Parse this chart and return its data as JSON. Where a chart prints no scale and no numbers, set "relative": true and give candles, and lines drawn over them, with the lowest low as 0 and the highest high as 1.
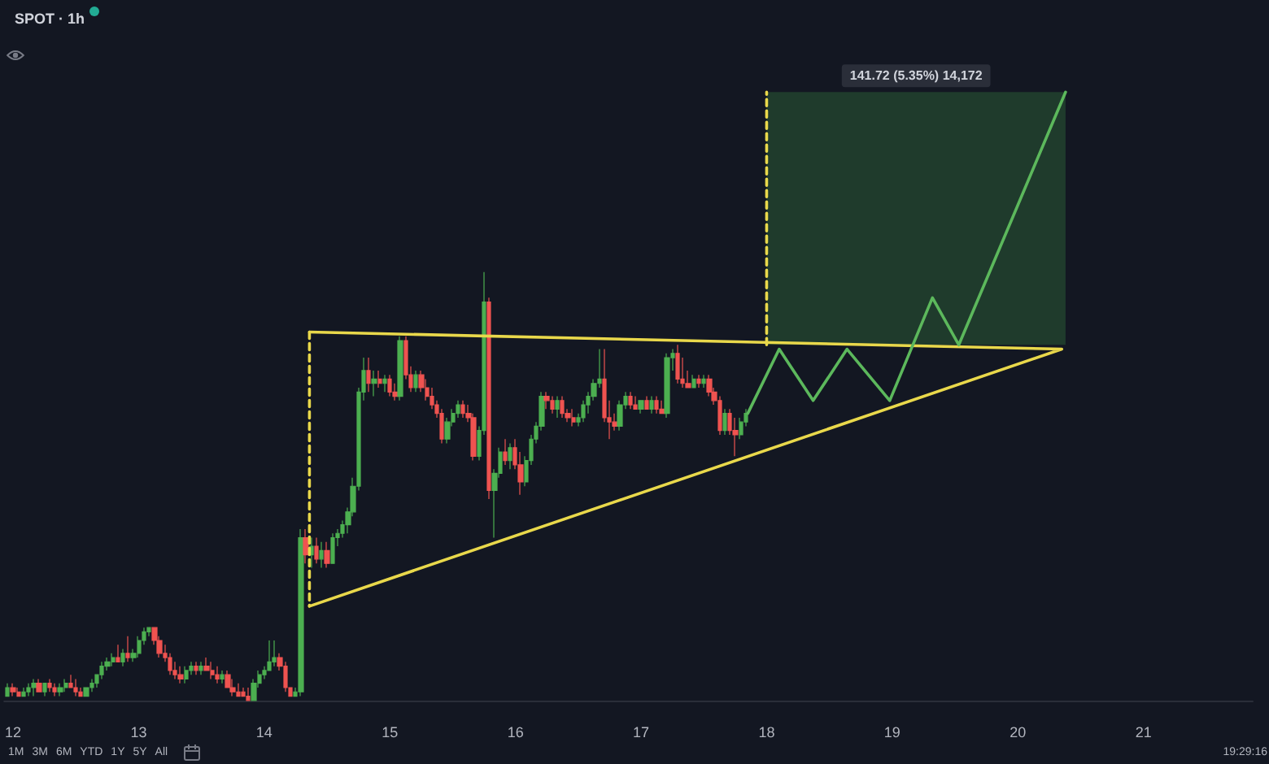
{
  "chart_data": {
    "type": "candlestick",
    "title": "SPOT · 1h",
    "relative": true,
    "marker": "none",
    "xlim": [
      11.93,
      21.87
    ],
    "xticks": [
      12,
      13,
      14,
      15,
      16,
      17,
      18,
      19,
      20,
      21
    ],
    "annotations": [
      "141.72 (5.35%) 14,172",
      "1M",
      "3M",
      "6M",
      "YTD",
      "1Y",
      "5Y",
      "All",
      "19:29:16"
    ],
    "series": [
      {
        "x": [
          11.958,
          12,
          12.042,
          12.083,
          12.125,
          12.167,
          12.208,
          12.25,
          12.292,
          12.333,
          12.375,
          12.417,
          12.458,
          12.5,
          12.542,
          12.583,
          12.625,
          12.667,
          12.708,
          12.75,
          12.792,
          12.833,
          12.875,
          12.917,
          12.958,
          13,
          13.042,
          13.083,
          13.125,
          13.167,
          13.208,
          13.25,
          13.292,
          13.333,
          13.375,
          13.417,
          13.458,
          13.5,
          13.542,
          13.583,
          13.625,
          13.667,
          13.708,
          13.75,
          13.792,
          13.833,
          13.875,
          13.917,
          13.958,
          14,
          14.042,
          14.083,
          14.125,
          14.167,
          14.208,
          14.25,
          14.292,
          14.333,
          14.375,
          14.417,
          14.458,
          14.5,
          14.542,
          14.583,
          14.625,
          14.667,
          14.708,
          14.75,
          14.792,
          14.833,
          14.875,
          14.917,
          14.958,
          15,
          15.042,
          15.083,
          15.125,
          15.167,
          15.208,
          15.25,
          15.292,
          15.333,
          15.375,
          15.417,
          15.458,
          15.5,
          15.542,
          15.583,
          15.625,
          15.667,
          15.708,
          15.75,
          15.792,
          15.833,
          15.875,
          15.917,
          15.958,
          16,
          16.042,
          16.083,
          16.125,
          16.167,
          16.208,
          16.25,
          16.292,
          16.333,
          16.375,
          16.417,
          16.458,
          16.5,
          16.542,
          16.583,
          16.625,
          16.667,
          16.708,
          16.75,
          16.792,
          16.833,
          16.875,
          16.917,
          16.958,
          17,
          17.042,
          17.083,
          17.125,
          17.167,
          17.208,
          17.25,
          17.292,
          17.333,
          17.375,
          17.417,
          17.458,
          17.5,
          17.542,
          17.583,
          17.625,
          17.667,
          17.708,
          17.75,
          17.792,
          17.833
        ],
        "ohlc": [
          [
            0.01,
            0.04,
            0.01,
            0.03
          ],
          [
            0.03,
            0.04,
            0.01,
            0.02
          ],
          [
            0.02,
            0.03,
            0.01,
            0.01
          ],
          [
            0.01,
            0.03,
            0.01,
            0.02
          ],
          [
            0.02,
            0.04,
            0.01,
            0.03
          ],
          [
            0.03,
            0.05,
            0.01,
            0.04
          ],
          [
            0.04,
            0.05,
            0.02,
            0.02
          ],
          [
            0.02,
            0.04,
            0.01,
            0.04
          ],
          [
            0.04,
            0.05,
            0.02,
            0.03
          ],
          [
            0.03,
            0.04,
            0.01,
            0.02
          ],
          [
            0.02,
            0.04,
            0.01,
            0.03
          ],
          [
            0.03,
            0.05,
            0.02,
            0.04
          ],
          [
            0.04,
            0.06,
            0.03,
            0.03
          ],
          [
            0.03,
            0.05,
            0.01,
            0.02
          ],
          [
            0.02,
            0.03,
            0.01,
            0.01
          ],
          [
            0.01,
            0.03,
            0.01,
            0.03
          ],
          [
            0.03,
            0.05,
            0.02,
            0.04
          ],
          [
            0.04,
            0.06,
            0.03,
            0.06
          ],
          [
            0.06,
            0.09,
            0.05,
            0.08
          ],
          [
            0.08,
            0.1,
            0.07,
            0.09
          ],
          [
            0.09,
            0.11,
            0.08,
            0.1
          ],
          [
            0.1,
            0.13,
            0.09,
            0.09
          ],
          [
            0.09,
            0.12,
            0.08,
            0.11
          ],
          [
            0.11,
            0.15,
            0.09,
            0.1
          ],
          [
            0.1,
            0.12,
            0.09,
            0.11
          ],
          [
            0.11,
            0.15,
            0.1,
            0.14
          ],
          [
            0.14,
            0.17,
            0.13,
            0.16
          ],
          [
            0.16,
            0.17,
            0.15,
            0.17
          ],
          [
            0.17,
            0.17,
            0.13,
            0.14
          ],
          [
            0.14,
            0.15,
            0.1,
            0.11
          ],
          [
            0.11,
            0.13,
            0.09,
            0.1
          ],
          [
            0.1,
            0.11,
            0.06,
            0.07
          ],
          [
            0.07,
            0.09,
            0.05,
            0.06
          ],
          [
            0.06,
            0.08,
            0.04,
            0.05
          ],
          [
            0.05,
            0.08,
            0.04,
            0.07
          ],
          [
            0.07,
            0.09,
            0.06,
            0.08
          ],
          [
            0.08,
            0.09,
            0.06,
            0.07
          ],
          [
            0.07,
            0.09,
            0.06,
            0.08
          ],
          [
            0.08,
            0.1,
            0.07,
            0.07
          ],
          [
            0.07,
            0.09,
            0.05,
            0.06
          ],
          [
            0.06,
            0.08,
            0.04,
            0.05
          ],
          [
            0.05,
            0.07,
            0.04,
            0.06
          ],
          [
            0.06,
            0.07,
            0.03,
            0.03
          ],
          [
            0.03,
            0.05,
            0.01,
            0.02
          ],
          [
            0.02,
            0.04,
            0.01,
            0.01
          ],
          [
            0.02,
            0.03,
            0.01,
            0.01
          ],
          [
            0.01,
            0.03,
            0.0,
            0.0
          ],
          [
            0.0,
            0.05,
            0.0,
            0.04
          ],
          [
            0.04,
            0.07,
            0.03,
            0.06
          ],
          [
            0.06,
            0.08,
            0.05,
            0.07
          ],
          [
            0.07,
            0.14,
            0.07,
            0.09
          ],
          [
            0.09,
            0.14,
            0.08,
            0.1
          ],
          [
            0.1,
            0.11,
            0.07,
            0.08
          ],
          [
            0.08,
            0.09,
            0.02,
            0.03
          ],
          [
            0.03,
            0.03,
            0.01,
            0.01
          ],
          [
            0.01,
            0.03,
            0.01,
            0.02
          ],
          [
            0.02,
            0.4,
            0.01,
            0.38
          ],
          [
            0.38,
            0.4,
            0.32,
            0.34
          ],
          [
            0.34,
            0.38,
            0.31,
            0.36
          ],
          [
            0.36,
            0.38,
            0.32,
            0.33
          ],
          [
            0.33,
            0.37,
            0.31,
            0.35
          ],
          [
            0.35,
            0.37,
            0.31,
            0.32
          ],
          [
            0.32,
            0.39,
            0.32,
            0.38
          ],
          [
            0.38,
            0.4,
            0.36,
            0.39
          ],
          [
            0.39,
            0.42,
            0.38,
            0.41
          ],
          [
            0.41,
            0.45,
            0.39,
            0.44
          ],
          [
            0.44,
            0.52,
            0.43,
            0.5
          ],
          [
            0.5,
            0.73,
            0.49,
            0.72
          ],
          [
            0.72,
            0.8,
            0.7,
            0.77
          ],
          [
            0.77,
            0.8,
            0.72,
            0.74
          ],
          [
            0.74,
            0.77,
            0.71,
            0.75
          ],
          [
            0.75,
            0.77,
            0.73,
            0.74
          ],
          [
            0.74,
            0.76,
            0.72,
            0.75
          ],
          [
            0.75,
            0.76,
            0.71,
            0.72
          ],
          [
            0.72,
            0.74,
            0.7,
            0.71
          ],
          [
            0.71,
            0.85,
            0.7,
            0.84
          ],
          [
            0.84,
            0.85,
            0.75,
            0.76
          ],
          [
            0.76,
            0.78,
            0.72,
            0.73
          ],
          [
            0.73,
            0.77,
            0.72,
            0.76
          ],
          [
            0.76,
            0.77,
            0.72,
            0.73
          ],
          [
            0.73,
            0.75,
            0.7,
            0.71
          ],
          [
            0.71,
            0.73,
            0.68,
            0.69
          ],
          [
            0.69,
            0.7,
            0.66,
            0.67
          ],
          [
            0.67,
            0.68,
            0.6,
            0.61
          ],
          [
            0.61,
            0.66,
            0.6,
            0.65
          ],
          [
            0.65,
            0.68,
            0.64,
            0.67
          ],
          [
            0.67,
            0.7,
            0.66,
            0.69
          ],
          [
            0.69,
            0.7,
            0.66,
            0.67
          ],
          [
            0.67,
            0.69,
            0.65,
            0.66
          ],
          [
            0.66,
            0.67,
            0.56,
            0.57
          ],
          [
            0.57,
            0.64,
            0.56,
            0.63
          ],
          [
            0.63,
            1.0,
            0.62,
            0.93
          ],
          [
            0.93,
            0.94,
            0.47,
            0.49
          ],
          [
            0.49,
            0.54,
            0.38,
            0.53
          ],
          [
            0.53,
            0.59,
            0.52,
            0.58
          ],
          [
            0.58,
            0.61,
            0.55,
            0.56
          ],
          [
            0.56,
            0.6,
            0.54,
            0.59
          ],
          [
            0.59,
            0.61,
            0.54,
            0.55
          ],
          [
            0.55,
            0.58,
            0.48,
            0.51
          ],
          [
            0.51,
            0.57,
            0.5,
            0.56
          ],
          [
            0.56,
            0.62,
            0.55,
            0.61
          ],
          [
            0.61,
            0.65,
            0.6,
            0.64
          ],
          [
            0.64,
            0.72,
            0.63,
            0.71
          ],
          [
            0.71,
            0.72,
            0.68,
            0.7
          ],
          [
            0.7,
            0.71,
            0.67,
            0.68
          ],
          [
            0.68,
            0.71,
            0.66,
            0.7
          ],
          [
            0.7,
            0.71,
            0.66,
            0.67
          ],
          [
            0.67,
            0.68,
            0.65,
            0.66
          ],
          [
            0.66,
            0.68,
            0.64,
            0.65
          ],
          [
            0.65,
            0.67,
            0.64,
            0.66
          ],
          [
            0.66,
            0.7,
            0.65,
            0.69
          ],
          [
            0.69,
            0.72,
            0.67,
            0.71
          ],
          [
            0.71,
            0.75,
            0.7,
            0.74
          ],
          [
            0.74,
            0.82,
            0.73,
            0.75
          ],
          [
            0.75,
            0.82,
            0.65,
            0.66
          ],
          [
            0.66,
            0.7,
            0.61,
            0.65
          ],
          [
            0.65,
            0.67,
            0.63,
            0.64
          ],
          [
            0.64,
            0.7,
            0.63,
            0.69
          ],
          [
            0.69,
            0.72,
            0.68,
            0.71
          ],
          [
            0.71,
            0.72,
            0.68,
            0.69
          ],
          [
            0.69,
            0.71,
            0.68,
            0.68
          ],
          [
            0.68,
            0.7,
            0.67,
            0.7
          ],
          [
            0.7,
            0.71,
            0.68,
            0.68
          ],
          [
            0.68,
            0.71,
            0.67,
            0.7
          ],
          [
            0.7,
            0.71,
            0.67,
            0.68
          ],
          [
            0.68,
            0.7,
            0.67,
            0.67
          ],
          [
            0.67,
            0.81,
            0.66,
            0.8
          ],
          [
            0.8,
            0.82,
            0.77,
            0.81
          ],
          [
            0.81,
            0.83,
            0.74,
            0.75
          ],
          [
            0.75,
            0.8,
            0.73,
            0.74
          ],
          [
            0.74,
            0.77,
            0.73,
            0.73
          ],
          [
            0.73,
            0.76,
            0.73,
            0.75
          ],
          [
            0.75,
            0.76,
            0.73,
            0.74
          ],
          [
            0.74,
            0.76,
            0.73,
            0.75
          ],
          [
            0.75,
            0.76,
            0.71,
            0.72
          ],
          [
            0.72,
            0.73,
            0.69,
            0.7
          ],
          [
            0.7,
            0.71,
            0.62,
            0.63
          ],
          [
            0.63,
            0.68,
            0.62,
            0.67
          ],
          [
            0.67,
            0.68,
            0.62,
            0.63
          ],
          [
            0.63,
            0.66,
            0.57,
            0.62
          ],
          [
            0.62,
            0.66,
            0.61,
            0.65
          ],
          [
            0.65,
            0.68,
            0.64,
            0.67
          ]
        ],
        "colors": [
          "#4caf50",
          "#ef5350",
          "#ef5350",
          "#4caf50",
          "#4caf50",
          "#4caf50",
          "#ef5350",
          "#4caf50",
          "#ef5350",
          "#ef5350",
          "#4caf50",
          "#4caf50",
          "#ef5350",
          "#ef5350",
          "#ef5350",
          "#4caf50",
          "#4caf50",
          "#4caf50",
          "#4caf50",
          "#4caf50",
          "#4caf50",
          "#ef5350",
          "#4caf50",
          "#ef5350",
          "#4caf50",
          "#4caf50",
          "#4caf50",
          "#4caf50",
          "#ef5350",
          "#ef5350",
          "#ef5350",
          "#ef5350",
          "#ef5350",
          "#ef5350",
          "#4caf50",
          "#4caf50",
          "#ef5350",
          "#4caf50",
          "#ef5350",
          "#ef5350",
          "#ef5350",
          "#4caf50",
          "#ef5350",
          "#ef5350",
          "#ef5350",
          "#ef5350",
          "#ef5350",
          "#4caf50",
          "#4caf50",
          "#4caf50",
          "#4caf50",
          "#4caf50",
          "#ef5350",
          "#ef5350",
          "#ef5350",
          "#4caf50",
          "#4caf50",
          "#ef5350",
          "#4caf50",
          "#ef5350",
          "#4caf50",
          "#ef5350",
          "#4caf50",
          "#4caf50",
          "#4caf50",
          "#4caf50",
          "#4caf50",
          "#4caf50",
          "#4caf50",
          "#ef5350",
          "#4caf50",
          "#ef5350",
          "#4caf50",
          "#ef5350",
          "#ef5350",
          "#4caf50",
          "#ef5350",
          "#ef5350",
          "#4caf50",
          "#ef5350",
          "#ef5350",
          "#ef5350",
          "#ef5350",
          "#ef5350",
          "#4caf50",
          "#4caf50",
          "#4caf50",
          "#ef5350",
          "#ef5350",
          "#ef5350",
          "#4caf50",
          "#4caf50",
          "#ef5350",
          "#4caf50",
          "#4caf50",
          "#ef5350",
          "#4caf50",
          "#ef5350",
          "#ef5350",
          "#4caf50",
          "#4caf50",
          "#4caf50",
          "#4caf50",
          "#ef5350",
          "#ef5350",
          "#4caf50",
          "#ef5350",
          "#ef5350",
          "#ef5350",
          "#4caf50",
          "#4caf50",
          "#4caf50",
          "#4caf50",
          "#4caf50",
          "#ef5350",
          "#ef5350",
          "#ef5350",
          "#4caf50",
          "#4caf50",
          "#ef5350",
          "#ef5350",
          "#4caf50",
          "#ef5350",
          "#4caf50",
          "#ef5350",
          "#ef5350",
          "#4caf50",
          "#4caf50",
          "#ef5350",
          "#ef5350",
          "#ef5350",
          "#4caf50",
          "#ef5350",
          "#4caf50",
          "#ef5350",
          "#ef5350",
          "#ef5350",
          "#4caf50",
          "#ef5350",
          "#ef5350",
          "#4caf50",
          "#4caf50"
        ]
      },
      {
        "type": "line",
        "x": [
          18.0,
          20.38
        ],
        "values": [
          null,
          null
        ],
        "lower": [
          0.83,
          0.83
        ],
        "upper": [
          1.42,
          1.42
        ],
        "color": "#1f3b2c"
      },
      {
        "type": "line",
        "x": [
          14.36,
          20.35,
          14.36
        ],
        "values": [
          0.86,
          0.82,
          0.22
        ],
        "color": "#e9d84b"
      },
      {
        "type": "line",
        "x": [
          14.36,
          14.36
        ],
        "values": [
          0.86,
          0.22
        ],
        "color": "#e9d84b",
        "line_style": "dashed"
      },
      {
        "type": "line",
        "x": [
          18.0,
          18.0
        ],
        "values": [
          0.83,
          1.42
        ],
        "color": "#e9d84b",
        "line_style": "dashed"
      },
      {
        "type": "line",
        "x": [
          17.85,
          18.1,
          18.37,
          18.64,
          18.98,
          19.32,
          19.53,
          20.38
        ],
        "values": [
          0.67,
          0.82,
          0.7,
          0.82,
          0.7,
          0.94,
          0.83,
          1.42
        ],
        "color": "#5cb85c"
      }
    ]
  }
}
